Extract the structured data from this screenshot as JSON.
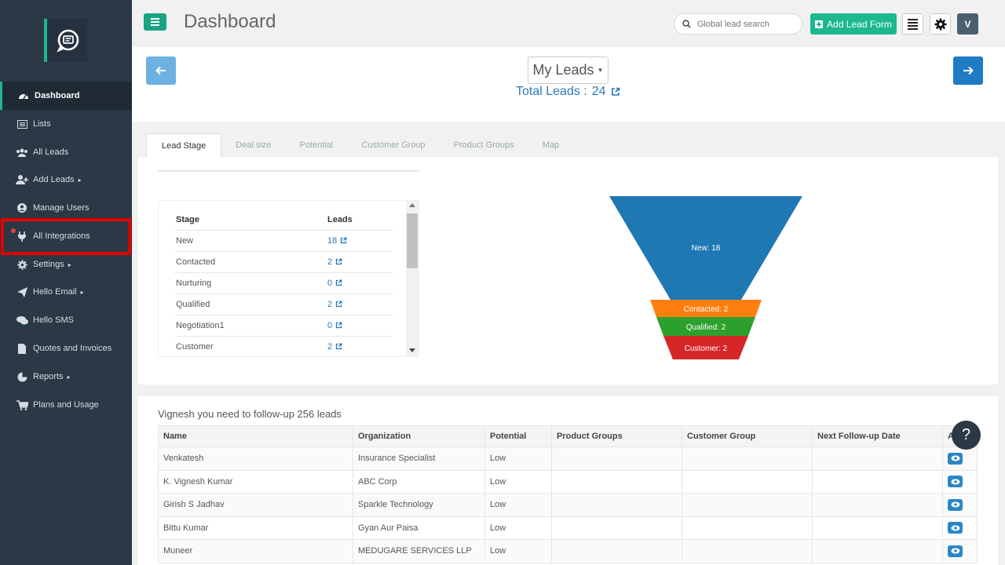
{
  "header": {
    "title": "Dashboard",
    "search_placeholder": "Global lead search",
    "add_lead_label": "Add Lead Form",
    "avatar_initial": "V"
  },
  "sidebar": {
    "items": [
      {
        "label": "Dashboard",
        "icon": "dashboard-icon",
        "caret": ""
      },
      {
        "label": "Lists",
        "icon": "list-icon",
        "caret": ""
      },
      {
        "label": "All Leads",
        "icon": "users-icon",
        "caret": ""
      },
      {
        "label": "Add Leads",
        "icon": "add-user-icon",
        "caret": "▸"
      },
      {
        "label": "Manage Users",
        "icon": "user-circle-icon",
        "caret": ""
      },
      {
        "label": "All Integrations",
        "icon": "plug-icon",
        "caret": ""
      },
      {
        "label": "Settings",
        "icon": "gear-icon",
        "caret": "▸"
      },
      {
        "label": "Hello Email",
        "icon": "send-icon",
        "caret": "▸"
      },
      {
        "label": "Hello SMS",
        "icon": "chat-icon",
        "caret": ""
      },
      {
        "label": "Quotes and Invoices",
        "icon": "file-icon",
        "caret": ""
      },
      {
        "label": "Reports",
        "icon": "pie-chart-icon",
        "caret": "▸"
      },
      {
        "label": "Plans and Usage",
        "icon": "cart-icon",
        "caret": ""
      }
    ]
  },
  "top": {
    "dropdown_label": "My Leads",
    "total_leads_label": "Total Leads :",
    "total_leads_value": "24"
  },
  "tabs": [
    "Lead Stage",
    "Deal size",
    "Potential",
    "Customer Group",
    "Product Groups",
    "Map"
  ],
  "stage_table": {
    "headers": [
      "Stage",
      "Leads"
    ],
    "rows": [
      {
        "stage": "New",
        "leads": "18"
      },
      {
        "stage": "Contacted",
        "leads": "2"
      },
      {
        "stage": "Nurturing",
        "leads": "0"
      },
      {
        "stage": "Qualified",
        "leads": "2"
      },
      {
        "stage": "Negotiation1",
        "leads": "0"
      },
      {
        "stage": "Customer",
        "leads": "2"
      }
    ]
  },
  "funnel": {
    "segments": [
      {
        "label": "New: 18",
        "value": 18,
        "color": "#1f77b4"
      },
      {
        "label": "Contacted: 2",
        "value": 2,
        "color": "#ff7f0e"
      },
      {
        "label": "Qualified: 2",
        "value": 2,
        "color": "#2ca02c"
      },
      {
        "label": "Customer: 2",
        "value": 2,
        "color": "#d62728"
      }
    ]
  },
  "followup": {
    "title": "Vignesh you need to follow-up 256 leads",
    "headers": [
      "Name",
      "Organization",
      "Potential",
      "Product Groups",
      "Customer Group",
      "Next Follow-up Date",
      "A"
    ],
    "rows": [
      {
        "name": "Venkatesh",
        "org": "Insurance Specialist",
        "potential": "Low"
      },
      {
        "name": "K. Vignesh Kumar",
        "org": "ABC Corp",
        "potential": "Low"
      },
      {
        "name": "Girish S Jadhav",
        "org": "Sparkle Technology",
        "potential": "Low"
      },
      {
        "name": "Bittu Kumar",
        "org": "Gyan Aur Paisa",
        "potential": "Low"
      },
      {
        "name": "Muneer",
        "org": "MEDUGARE SERVICES LLP",
        "potential": "Low"
      }
    ]
  },
  "help_label": "?"
}
